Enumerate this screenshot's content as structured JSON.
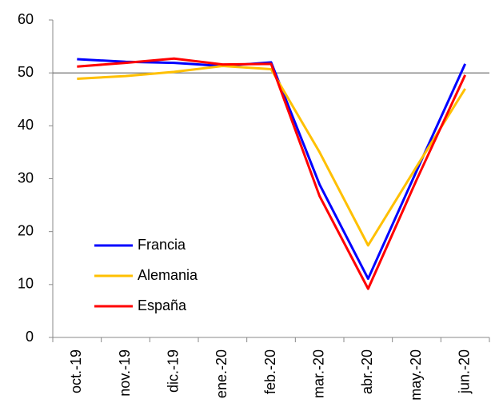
{
  "chart_data": {
    "type": "line",
    "categories": [
      "oct.-19",
      "nov.-19",
      "dic.-19",
      "ene.-20",
      "feb.-20",
      "mar.-20",
      "abr.-20",
      "may.-20",
      "jun.-20"
    ],
    "series": [
      {
        "name": "Francia",
        "color": "#0000ff",
        "values": [
          52.6,
          52.1,
          51.9,
          51.3,
          52.0,
          28.9,
          11.1,
          31.5,
          51.7
        ]
      },
      {
        "name": "Alemania",
        "color": "#ffc000",
        "values": [
          48.9,
          49.4,
          50.2,
          51.3,
          50.7,
          35.0,
          17.4,
          32.3,
          47.0
        ]
      },
      {
        "name": "España",
        "color": "#ff0000",
        "values": [
          51.2,
          51.9,
          52.7,
          51.6,
          51.7,
          26.7,
          9.2,
          29.8,
          49.6
        ]
      }
    ],
    "ylim": [
      0,
      60
    ],
    "yticks": [
      0,
      10,
      20,
      30,
      40,
      50,
      60
    ],
    "hline": 50,
    "grid": false,
    "legend": "lower left"
  }
}
